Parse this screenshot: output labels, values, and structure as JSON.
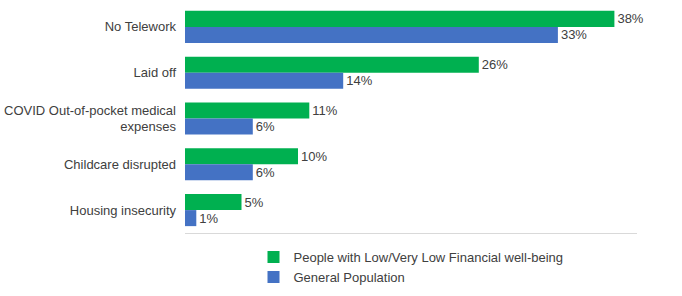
{
  "chart_data": {
    "type": "bar",
    "orientation": "horizontal",
    "categories": [
      "No Telework",
      "Laid off",
      "COVID Out-of-pocket medical expenses",
      "Childcare disrupted",
      "Housing insecurity"
    ],
    "series": [
      {
        "name": "People with Low/Very Low Financial well-being",
        "color": "#00b050",
        "values": [
          38,
          26,
          11,
          10,
          5
        ],
        "value_labels": [
          "38%",
          "26%",
          "11%",
          "10%",
          "5%"
        ]
      },
      {
        "name": "General Population",
        "color": "#4472c4",
        "values": [
          33,
          14,
          6,
          6,
          1
        ],
        "value_labels": [
          "33%",
          "14%",
          "6%",
          "6%",
          "1%"
        ]
      }
    ],
    "xlim": [
      0,
      40
    ],
    "data_labels": true,
    "tick_labels": "y",
    "grid": false,
    "legend": "bottom"
  }
}
